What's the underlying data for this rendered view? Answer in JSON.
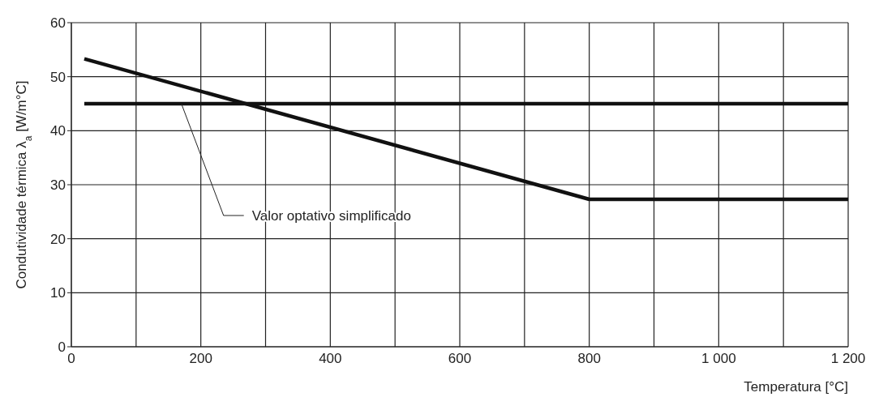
{
  "chart_data": {
    "type": "line",
    "xlabel": "Temperatura [°C]",
    "ylabel": "Condutividade térmica λ$_{a}$ [W/m°C]",
    "series": [
      {
        "color": "#111111",
        "x": [
          20,
          800,
          1200
        ],
        "values": [
          53.3,
          27.3,
          27.3
        ]
      },
      {
        "color": "#111111",
        "x": [
          20,
          1200
        ],
        "values": [
          45,
          45
        ]
      }
    ],
    "xlim": [
      0,
      1200
    ],
    "ylim": [
      0,
      60
    ],
    "xticks": [
      0,
      {
        "value": 100,
        "label": null
      },
      200,
      {
        "value": 300,
        "label": null
      },
      400,
      {
        "value": 500,
        "label": null
      },
      600,
      {
        "value": 700,
        "label": null
      },
      800,
      {
        "value": 900,
        "label": null
      },
      {
        "value": 1000,
        "label": "1 000"
      },
      {
        "value": 1100,
        "label": null
      },
      {
        "value": 1200,
        "label": "1 200"
      }
    ],
    "yticks": [
      0,
      10,
      20,
      30,
      40,
      50,
      60
    ],
    "grid": true,
    "marker": "none",
    "line_style": "solid",
    "annotations": [
      {
        "text": "Valor optativo simplificado",
        "x": 170,
        "y": 45
      }
    ]
  }
}
